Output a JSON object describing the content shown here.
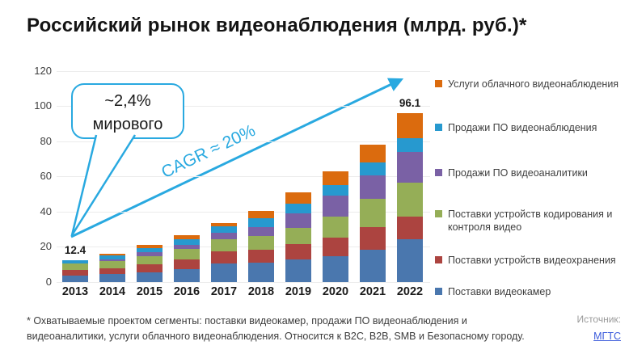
{
  "title": "Российский рынок видеонаблюдения (млрд. руб.)*",
  "chart_data": {
    "type": "bar",
    "stacked": true,
    "title": "Российский рынок видеонаблюдения (млрд. руб.)*",
    "categories": [
      "2013",
      "2014",
      "2015",
      "2016",
      "2017",
      "2018",
      "2019",
      "2020",
      "2021",
      "2022"
    ],
    "series": [
      {
        "name": "Поставки видеокамер",
        "color": "#4A77AE",
        "values": [
          3.5,
          4.2,
          5.5,
          7.0,
          10.3,
          10.8,
          12.5,
          14.5,
          18.3,
          24.4
        ]
      },
      {
        "name": "Поставки устройств видеохранения",
        "color": "#AC4440",
        "values": [
          3.4,
          3.6,
          4.6,
          5.5,
          7.1,
          7.5,
          9.0,
          10.5,
          12.9,
          12.9
        ]
      },
      {
        "name": "Поставки устройств кодирования и контроля видео",
        "color": "#95AE57",
        "values": [
          3.3,
          3.8,
          4.4,
          6.4,
          6.7,
          7.9,
          9.3,
          12.2,
          16.0,
          19.3
        ]
      },
      {
        "name": "Продажи ПО видеоаналитики",
        "color": "#7A61A5",
        "values": [
          0.2,
          1.0,
          2.2,
          2.0,
          3.6,
          4.8,
          8.2,
          11.7,
          13.6,
          17.3
        ]
      },
      {
        "name": "Продажи ПО видеонаблюдения",
        "color": "#2799CF",
        "values": [
          2.0,
          2.2,
          2.5,
          3.2,
          3.7,
          5.2,
          5.7,
          6.2,
          7.2,
          7.8
        ]
      },
      {
        "name": "Услуги облачного видеонаблюдения",
        "color": "#DB6B0E",
        "values": [
          0.0,
          1.2,
          1.6,
          2.4,
          2.0,
          4.0,
          6.3,
          7.7,
          10.0,
          14.4
        ]
      }
    ],
    "totals": [
      12.4,
      16.0,
      20.8,
      26.5,
      33.4,
      40.2,
      51.0,
      62.8,
      78.0,
      96.1
    ],
    "point_labels": [
      {
        "category": "2013",
        "text": "12.4"
      },
      {
        "category": "2022",
        "text": "96.1"
      }
    ],
    "ylim": [
      0,
      120
    ],
    "ytick_step": 20,
    "grid": "horizontal-light",
    "legend_position": "right",
    "annotations": {
      "callout_line1": "~2,4%",
      "callout_line2": "мирового",
      "cagr_label": "CAGR ≈ 20%"
    },
    "accent_color": "#29A9E0"
  },
  "footnote": "* Охватываемые проектом сегменты: поставки видеокамер, продажи ПО видеонаблюдения и видеоаналитики, услуги облачного видеонаблюдения. Относится к B2C, B2B, SMB и Безопасному городу.",
  "source": {
    "label": "Источник:",
    "link_text": "МГТС"
  }
}
